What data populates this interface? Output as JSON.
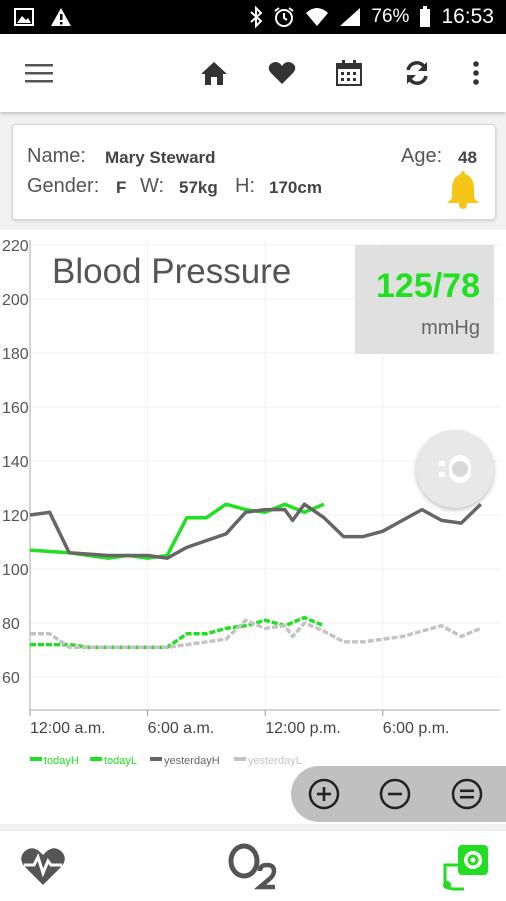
{
  "status_bar": {
    "battery": "76%",
    "time": "16:53"
  },
  "patient": {
    "name_label": "Name:",
    "name": "Mary Steward",
    "gender_label": "Gender:",
    "gender": "F",
    "weight_label": "W:",
    "weight": "57kg",
    "height_label": "H:",
    "height": "170cm",
    "age_label": "Age:",
    "age": "48"
  },
  "reading": {
    "title": "Blood Pressure",
    "value": "125/78",
    "unit": "mmHg"
  },
  "colors": {
    "today": "#21e021",
    "yesterdayH": "#666666",
    "yesterdayL": "#c4c4c4",
    "bell": "#f5c518",
    "accent_green": "#22dd22"
  },
  "chart_data": {
    "type": "line",
    "ylim": [
      48,
      222
    ],
    "y_ticks": [
      60,
      80,
      100,
      120,
      140,
      160,
      180,
      200,
      220
    ],
    "y_tick_labels": [
      "60",
      "80",
      "100",
      "120",
      "140",
      "160",
      "180",
      "200",
      "220"
    ],
    "xlim": [
      0,
      24
    ],
    "x_ticks": [
      0,
      6,
      12,
      18
    ],
    "x_tick_labels": [
      "12:00 a.m.",
      "6:00 a.m.",
      "12:00 p.m.",
      "6:00 p.m."
    ],
    "series": [
      {
        "name": "todayH",
        "color": "#21e021",
        "x": [
          0,
          2,
          3,
          4,
          5,
          6,
          7,
          8,
          9,
          10,
          11,
          12,
          13,
          14,
          15
        ],
        "y": [
          107,
          106,
          105,
          104,
          105,
          104,
          105,
          119,
          119,
          124,
          122,
          121,
          124,
          121,
          124
        ]
      },
      {
        "name": "todayL",
        "color": "#21e021",
        "x": [
          0,
          2,
          3,
          4,
          5,
          6,
          7,
          8,
          9,
          10,
          11,
          12,
          13,
          14,
          15
        ],
        "y": [
          72,
          72,
          71,
          71,
          71,
          71,
          71,
          76,
          76,
          78,
          79,
          81,
          79,
          82,
          79
        ]
      },
      {
        "name": "yesterdayH",
        "color": "#666666",
        "x": [
          0,
          1,
          2,
          4,
          6,
          7,
          8,
          10,
          11,
          12,
          13,
          13.4,
          14,
          15,
          16,
          17,
          18,
          19,
          20,
          21,
          22,
          23
        ],
        "y": [
          120,
          121,
          106,
          105,
          105,
          104,
          108,
          113,
          121,
          122,
          122,
          118,
          124,
          119,
          112,
          112,
          114,
          118,
          122,
          118,
          117,
          124
        ]
      },
      {
        "name": "yesterdayL",
        "color": "#c4c4c4",
        "x": [
          0,
          1,
          2,
          4,
          6,
          7,
          8,
          10,
          11,
          12,
          13,
          13.4,
          14,
          15,
          16,
          17,
          18,
          19,
          20,
          21,
          22,
          23
        ],
        "y": [
          76,
          76,
          71,
          71,
          71,
          71,
          72,
          74,
          81,
          78,
          79,
          75,
          80,
          77,
          73,
          73,
          74,
          75,
          77,
          79,
          75,
          78
        ]
      }
    ],
    "legend": [
      "todayH",
      "todayL",
      "yesterdayH",
      "yesterdayL"
    ],
    "legend_position": "bottom-left",
    "grid": true
  }
}
